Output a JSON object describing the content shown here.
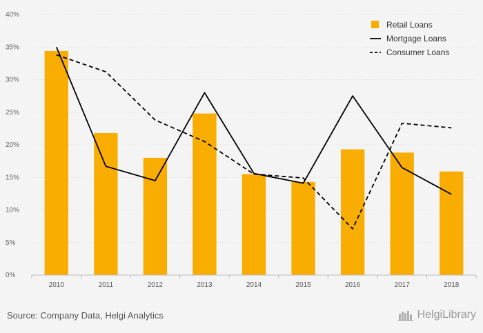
{
  "chart_data": {
    "type": "bar",
    "categories": [
      "2010",
      "2011",
      "2012",
      "2013",
      "2014",
      "2015",
      "2016",
      "2017",
      "2018"
    ],
    "series": [
      {
        "name": "Retail Loans",
        "kind": "bar",
        "color": "#f9ad00",
        "values": [
          34.4,
          21.8,
          18.0,
          24.8,
          15.5,
          14.3,
          19.3,
          18.8,
          15.9
        ]
      },
      {
        "name": "Mortgage Loans",
        "kind": "line",
        "style": "solid",
        "color": "#000000",
        "values": [
          35.0,
          16.7,
          14.5,
          28.0,
          15.6,
          14.1,
          27.5,
          16.5,
          12.4
        ]
      },
      {
        "name": "Consumer Loans",
        "kind": "line",
        "style": "dashed",
        "color": "#000000",
        "values": [
          33.8,
          31.2,
          23.8,
          20.5,
          15.5,
          14.9,
          7.1,
          23.3,
          22.6
        ]
      }
    ],
    "yticks": [
      "0%",
      "5%",
      "10%",
      "15%",
      "20%",
      "25%",
      "30%",
      "35%",
      "40%"
    ],
    "ylim": [
      0,
      40
    ],
    "grid": true,
    "legend_position": "top-right",
    "title": "",
    "xlabel": "",
    "ylabel": ""
  },
  "footer": {
    "source": "Source: Company Data, Helgi Analytics",
    "brand": "HelgiLibrary"
  }
}
